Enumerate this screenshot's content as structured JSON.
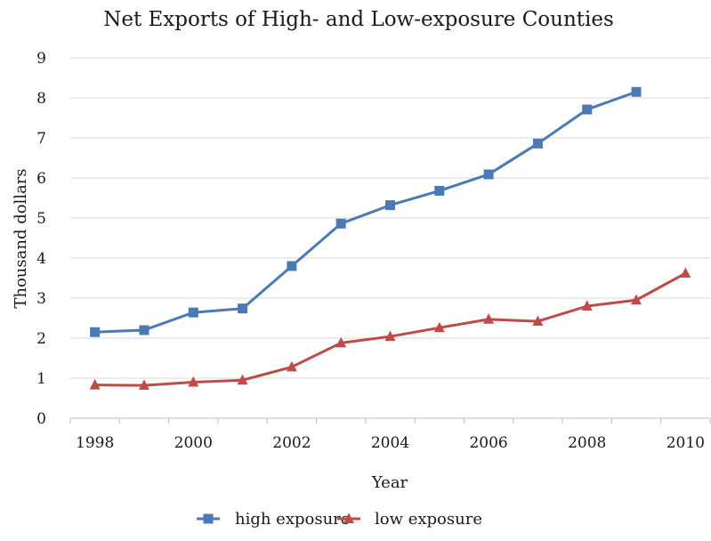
{
  "chart_data": {
    "type": "line",
    "title": "Net Exports of High- and Low-exposure Counties",
    "xlabel": "Year",
    "ylabel": "Thousand dollars",
    "x": [
      1998,
      1999,
      2000,
      2001,
      2002,
      2003,
      2004,
      2005,
      2006,
      2007,
      2008,
      2009,
      2010
    ],
    "x_tick_labels": [
      "1998",
      "2000",
      "2002",
      "2004",
      "2006",
      "2008",
      "2010"
    ],
    "x_tick_values": [
      1998,
      2000,
      2002,
      2004,
      2006,
      2008,
      2010
    ],
    "y_tick_labels": [
      "0",
      "1",
      "2",
      "3",
      "4",
      "5",
      "6",
      "7",
      "8",
      "9"
    ],
    "ylim": [
      0,
      9
    ],
    "xlim": [
      1997.5,
      2010.5
    ],
    "grid": "horizontal",
    "legend_position": "bottom",
    "series": [
      {
        "name": "high exposure",
        "color": "#4a7ab5",
        "marker": "square",
        "points": [
          [
            1998,
            2.15
          ],
          [
            1999,
            2.2
          ],
          [
            2000,
            2.64
          ],
          [
            2001,
            2.74
          ],
          [
            2002,
            3.8
          ],
          [
            2003,
            4.86
          ],
          [
            2004,
            5.32
          ],
          [
            2005,
            5.68
          ],
          [
            2006,
            6.09
          ],
          [
            2007,
            6.86
          ],
          [
            2008,
            7.71
          ],
          [
            2009,
            8.15
          ]
        ]
      },
      {
        "name": "low exposure",
        "color": "#be4b48",
        "marker": "triangle",
        "points": [
          [
            1998,
            0.83
          ],
          [
            1999,
            0.82
          ],
          [
            2000,
            0.9
          ],
          [
            2001,
            0.95
          ],
          [
            2002,
            1.28
          ],
          [
            2003,
            1.88
          ],
          [
            2004,
            2.04
          ],
          [
            2005,
            2.26
          ],
          [
            2006,
            2.47
          ],
          [
            2007,
            2.42
          ],
          [
            2008,
            2.8
          ],
          [
            2009,
            2.95
          ],
          [
            2010,
            3.62
          ]
        ]
      }
    ]
  }
}
